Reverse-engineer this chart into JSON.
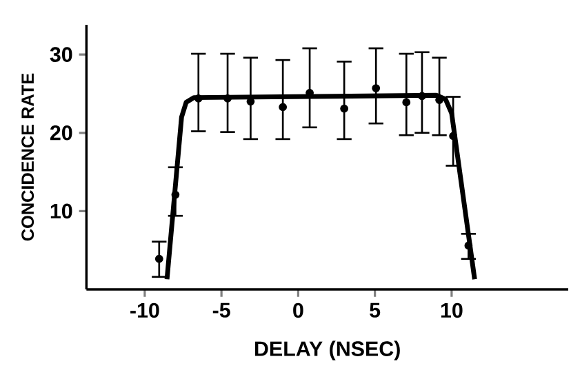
{
  "chart_data": {
    "type": "scatter",
    "xlabel": "DELAY (NSEC)",
    "ylabel": "CONCIDENCE RATE",
    "xlim": [
      -13.8,
      17.6
    ],
    "ylim": [
      0,
      33.8
    ],
    "xticks": [
      -10,
      -5,
      0,
      5,
      10
    ],
    "yticks": [
      10,
      20,
      30
    ],
    "grid": false,
    "series": [
      {
        "color": "#000000",
        "marker": "circle",
        "x": [
          -9.06,
          -8.0,
          -6.5,
          -4.6,
          -3.1,
          -1.0,
          0.75,
          3.0,
          5.07,
          7.05,
          8.07,
          9.2,
          10.1,
          11.1
        ],
        "values": [
          3.9,
          12.1,
          24.4,
          24.4,
          24.0,
          23.3,
          25.1,
          23.1,
          25.7,
          23.9,
          24.7,
          24.2,
          19.6,
          5.6
        ],
        "errors": [
          [
            1.6,
            6.1
          ],
          [
            9.4,
            15.6
          ],
          [
            20.2,
            30.1
          ],
          [
            20.1,
            30.1
          ],
          [
            19.2,
            29.6
          ],
          [
            19.2,
            29.3
          ],
          [
            20.7,
            30.8
          ],
          [
            19.2,
            29.1
          ],
          [
            21.2,
            30.8
          ],
          [
            19.7,
            30.1
          ],
          [
            20.0,
            30.3
          ],
          [
            19.7,
            29.6
          ],
          [
            15.8,
            24.6
          ],
          [
            3.9,
            7.1
          ]
        ]
      },
      {
        "type": "line",
        "color": "#000000",
        "marker": "none",
        "line_style": "solid",
        "x": [
          -8.55,
          -7.6,
          -7.3,
          -6.8,
          9.0,
          9.6,
          10.0,
          11.5
        ],
        "values": [
          1.3,
          22.0,
          23.9,
          24.5,
          24.8,
          24.3,
          22.5,
          1.3
        ]
      }
    ]
  }
}
